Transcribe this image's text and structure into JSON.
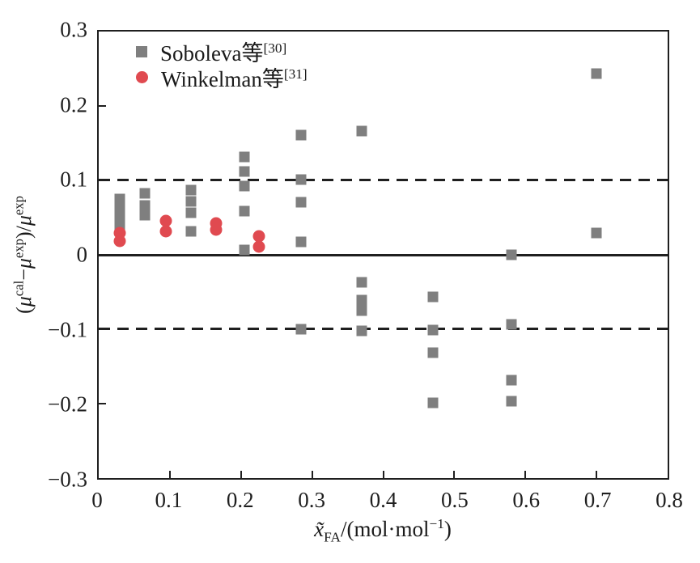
{
  "figure": {
    "legend": {
      "items": [
        {
          "label": "Soboleva等",
          "ref": "[30]"
        },
        {
          "label": "Winkelman等",
          "ref": "[31]"
        }
      ]
    },
    "x_axis": {
      "label": {
        "variable": "x̃",
        "subscript": "FA",
        "unit_open": "/(mol·mol",
        "unit_exp": "−1",
        "unit_close": ")"
      }
    },
    "y_axis": {
      "label": {
        "p1": "(",
        "mu1": "μ",
        "s1": "cal",
        "p2": "−",
        "mu2": "μ",
        "s2": "exp",
        "p3": ")/",
        "mu3": "μ",
        "s3": "exp"
      }
    }
  },
  "chart_data": {
    "type": "scatter",
    "title": "",
    "xlabel": "x̃FA/(mol·mol−1)",
    "ylabel": "(μcal−μexp)/μexp",
    "xlim": [
      0,
      0.8
    ],
    "ylim": [
      -0.3,
      0.3
    ],
    "grid": false,
    "legend_position": "top-left",
    "x_ticks": {
      "values": [
        0,
        0.1,
        0.2,
        0.3,
        0.4,
        0.5,
        0.6,
        0.7,
        0.8
      ],
      "labels": [
        "0",
        "0.1",
        "0.2",
        "0.3",
        "0.4",
        "0.5",
        "0.6",
        "0.7",
        "0.8"
      ]
    },
    "y_ticks": {
      "values": [
        0.3,
        0.2,
        0.1,
        0,
        -0.1,
        -0.2,
        -0.3
      ],
      "labels": [
        "0.3",
        "0.2",
        "0.1",
        "0",
        "−0.1",
        "−0.2",
        "−0.3"
      ]
    },
    "reference_lines": [
      {
        "y": 0.1,
        "style": "dashed",
        "color": "#1f1f1f"
      },
      {
        "y": 0.0,
        "style": "solid",
        "color": "#1f1f1f"
      },
      {
        "y": -0.1,
        "style": "dashed",
        "color": "#1f1f1f"
      }
    ],
    "series": [
      {
        "name": "Soboleva等[30]",
        "marker": "square",
        "color": "#7f7f7f",
        "points": [
          [
            0.03,
            0.075
          ],
          [
            0.03,
            0.063
          ],
          [
            0.03,
            0.051
          ],
          [
            0.03,
            0.04
          ],
          [
            0.065,
            0.083
          ],
          [
            0.065,
            0.066
          ],
          [
            0.065,
            0.053
          ],
          [
            0.13,
            0.087
          ],
          [
            0.13,
            0.072
          ],
          [
            0.13,
            0.057
          ],
          [
            0.13,
            0.031
          ],
          [
            0.205,
            0.132
          ],
          [
            0.205,
            0.112
          ],
          [
            0.205,
            0.092
          ],
          [
            0.205,
            0.059
          ],
          [
            0.205,
            0.006
          ],
          [
            0.285,
            0.161
          ],
          [
            0.285,
            0.101
          ],
          [
            0.285,
            0.071
          ],
          [
            0.285,
            0.017
          ],
          [
            0.285,
            -0.1
          ],
          [
            0.37,
            0.166
          ],
          [
            0.37,
            -0.037
          ],
          [
            0.37,
            -0.061
          ],
          [
            0.37,
            -0.075
          ],
          [
            0.37,
            -0.102
          ],
          [
            0.47,
            -0.057
          ],
          [
            0.47,
            -0.101
          ],
          [
            0.47,
            -0.132
          ],
          [
            0.47,
            -0.199
          ],
          [
            0.58,
            0.0
          ],
          [
            0.58,
            -0.093
          ],
          [
            0.58,
            -0.168
          ],
          [
            0.58,
            -0.197
          ],
          [
            0.7,
            0.244
          ],
          [
            0.7,
            0.029
          ]
        ]
      },
      {
        "name": "Winkelman等[31]",
        "marker": "circle",
        "color": "#e04a50",
        "points": [
          [
            0.03,
            0.029
          ],
          [
            0.03,
            0.019
          ],
          [
            0.095,
            0.046
          ],
          [
            0.095,
            0.032
          ],
          [
            0.165,
            0.042
          ],
          [
            0.165,
            0.034
          ],
          [
            0.225,
            0.025
          ],
          [
            0.225,
            0.011
          ]
        ]
      }
    ]
  }
}
